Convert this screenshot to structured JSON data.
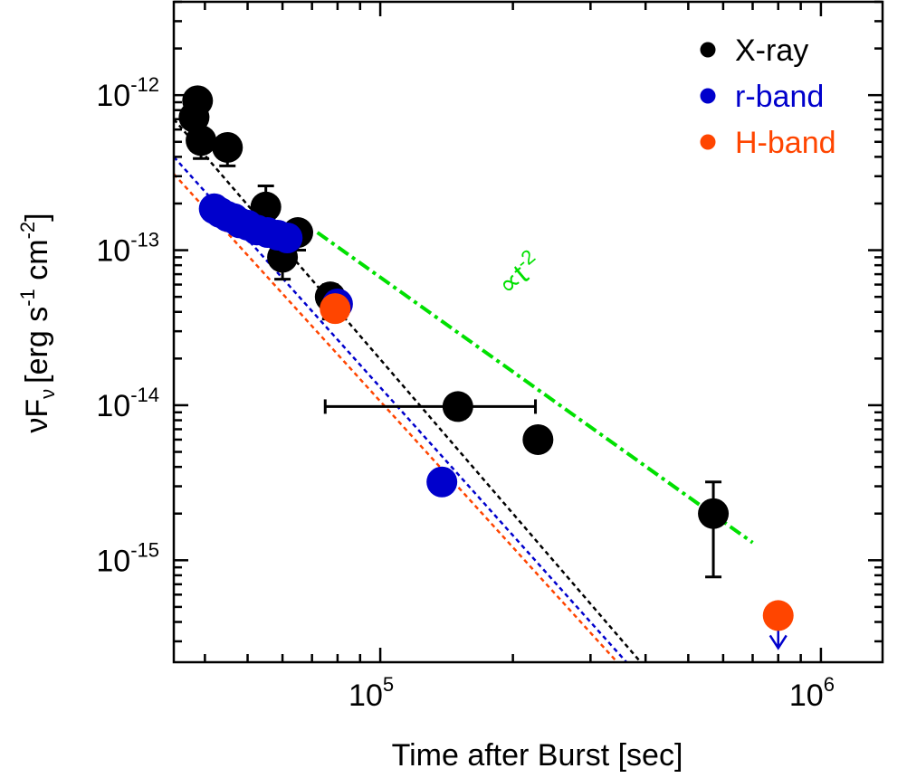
{
  "chart_data": {
    "type": "scatter",
    "scale": "log-log",
    "xlabel": "Time after Burst [sec]",
    "ylabel": "νF_ν [erg s^-1 cm^-2]",
    "ylabel_parts": {
      "nu": "ν",
      "F": "F",
      "sub": "ν",
      "pre": "[erg s",
      "exp1": "-1",
      "mid": " cm",
      "exp2": "-2",
      "post": "]"
    },
    "xlim": [
      34000,
      1380000
    ],
    "ylim": [
      2.2e-16,
      4e-12
    ],
    "x_ticks": [
      {
        "value": 100000,
        "base": "10",
        "exp": "5"
      },
      {
        "value": 1000000,
        "base": "10",
        "exp": "6"
      }
    ],
    "y_ticks": [
      {
        "value": 1e-12,
        "base": "10",
        "exp": "-12"
      },
      {
        "value": 1e-13,
        "base": "10",
        "exp": "-13"
      },
      {
        "value": 1e-14,
        "base": "10",
        "exp": "-14"
      },
      {
        "value": 1e-15,
        "base": "10",
        "exp": "-15"
      }
    ],
    "legend": [
      {
        "label": "X-ray",
        "color": "#000000"
      },
      {
        "label": "r-band",
        "color": "#0000cc"
      },
      {
        "label": "H-band",
        "color": "#ff4500"
      }
    ],
    "series": [
      {
        "name": "X-ray",
        "color": "#000000",
        "points": [
          {
            "x": 38500,
            "y": 9.2e-13,
            "ylo": 7.6e-13,
            "yhi": 1.06e-12
          },
          {
            "x": 37800,
            "y": 7.2e-13
          },
          {
            "x": 39200,
            "y": 5.1e-13,
            "ylo": 3.9e-13,
            "yhi": 5.5e-13
          },
          {
            "x": 45000,
            "y": 4.6e-13,
            "ylo": 3.5e-13,
            "yhi": 4.9e-13
          },
          {
            "x": 55000,
            "y": 1.9e-13,
            "ylo": 1.5e-13,
            "yhi": 2.6e-13
          },
          {
            "x": 60000,
            "y": 9e-14,
            "ylo": 6.5e-14,
            "yhi": 1.05e-13
          },
          {
            "x": 65000,
            "y": 1.3e-13,
            "ylo": 1e-13,
            "yhi": 1.45e-13
          },
          {
            "x": 77000,
            "y": 5e-14,
            "ylo": 3.6e-14,
            "yhi": 6e-14
          },
          {
            "x": 150000,
            "y": 9.8e-15,
            "ylo": 8.2e-15,
            "yhi": 1.1e-14,
            "xlo": 75000,
            "xhi": 225000
          },
          {
            "x": 228000,
            "y": 6e-15
          },
          {
            "x": 570000,
            "y": 2e-15,
            "ylo": 7.8e-16,
            "yhi": 3.2e-15
          }
        ]
      },
      {
        "name": "r-band",
        "color": "#0000cc",
        "points": [
          {
            "x": 42000,
            "y": 1.85e-13
          },
          {
            "x": 43300,
            "y": 1.75e-13
          },
          {
            "x": 45000,
            "y": 1.65e-13
          },
          {
            "x": 46500,
            "y": 1.6e-13
          },
          {
            "x": 48000,
            "y": 1.5e-13
          },
          {
            "x": 50000,
            "y": 1.45e-13
          },
          {
            "x": 52500,
            "y": 1.35e-13
          },
          {
            "x": 55500,
            "y": 1.3e-13
          },
          {
            "x": 58500,
            "y": 1.25e-13
          },
          {
            "x": 61500,
            "y": 1.2e-13
          },
          {
            "x": 80000,
            "y": 4.5e-14
          },
          {
            "x": 138000,
            "y": 3.2e-15
          }
        ]
      },
      {
        "name": "H-band",
        "color": "#ff4500",
        "points": [
          {
            "x": 79000,
            "y": 4.2e-14
          },
          {
            "x": 800000,
            "y": 4.4e-16,
            "upper_limit": true
          }
        ]
      }
    ],
    "fit_lines": [
      {
        "name": "X-ray fit",
        "color": "#000000",
        "dash": "short",
        "x": [
          34000,
          390000
        ],
        "y": [
          7e-13,
          2.2e-16
        ]
      },
      {
        "name": "r-band fit",
        "color": "#0000cc",
        "dash": "short",
        "x": [
          34000,
          362000
        ],
        "y": [
          4e-13,
          2.2e-16
        ]
      },
      {
        "name": "H-band fit",
        "color": "#ff4500",
        "dash": "short",
        "x": [
          34000,
          345000
        ],
        "y": [
          3.1e-13,
          2.2e-16
        ]
      },
      {
        "name": "t^-2 reference",
        "color": "#00e000",
        "dash": "dash-dot",
        "x": [
          72000,
          700000
        ],
        "y": [
          1.3e-13,
          1.3e-15
        ]
      }
    ],
    "annotations": [
      {
        "text": "∝t",
        "exp": "-2",
        "color": "#00e000",
        "x": 195000,
        "y": 5e-14,
        "angle": -40
      }
    ]
  }
}
